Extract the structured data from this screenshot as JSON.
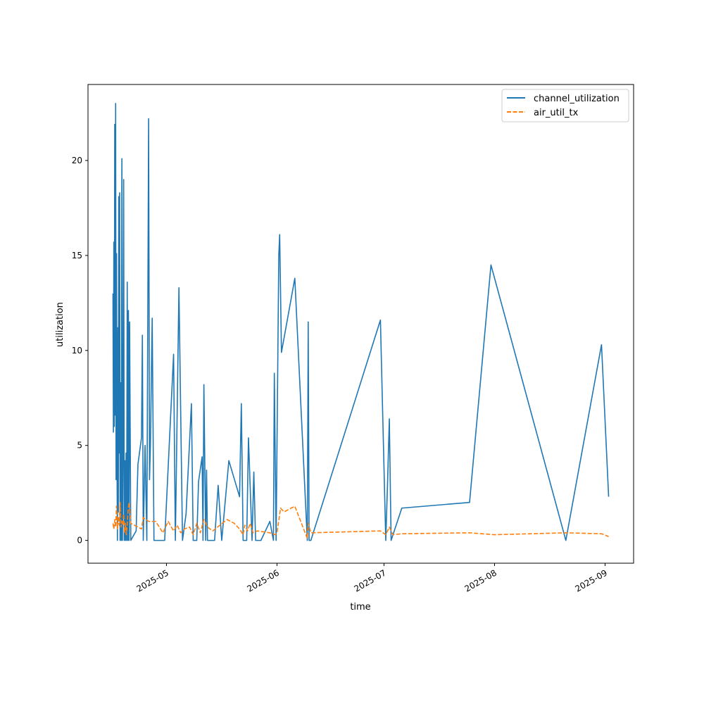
{
  "chart_data": {
    "type": "line",
    "xlabel": "time",
    "ylabel": "utilization",
    "x_axis_kind": "date",
    "xlim": [
      "2025-04-09",
      "2025-09-09"
    ],
    "ylim": [
      -1.2,
      24.0
    ],
    "grid": false,
    "legend_position": "top-right",
    "x_ticks": [
      {
        "date": "2025-05-01",
        "label": "2025-05"
      },
      {
        "date": "2025-06-01",
        "label": "2025-06"
      },
      {
        "date": "2025-07-01",
        "label": "2025-07"
      },
      {
        "date": "2025-08-01",
        "label": "2025-08"
      },
      {
        "date": "2025-09-01",
        "label": "2025-09"
      }
    ],
    "y_ticks": [
      {
        "value": 0,
        "label": "0"
      },
      {
        "value": 5,
        "label": "5"
      },
      {
        "value": 10,
        "label": "10"
      },
      {
        "value": 15,
        "label": "15"
      },
      {
        "value": 20,
        "label": "20"
      }
    ],
    "series": [
      {
        "name": "channel_utilization",
        "color": "#1f77b4",
        "dash": "solid",
        "points": [
          [
            "2025-04-16T00:00",
            13.0
          ],
          [
            "2025-04-16T03:00",
            5.7
          ],
          [
            "2025-04-16T06:00",
            15.7
          ],
          [
            "2025-04-16T09:00",
            6.0
          ],
          [
            "2025-04-16T12:00",
            21.9
          ],
          [
            "2025-04-16T15:00",
            6.6
          ],
          [
            "2025-04-16T18:00",
            23.0
          ],
          [
            "2025-04-16T21:00",
            3.2
          ],
          [
            "2025-04-17T00:00",
            15.1
          ],
          [
            "2025-04-17T03:00",
            4.4
          ],
          [
            "2025-04-17T06:00",
            0.0
          ],
          [
            "2025-04-17T09:00",
            11.2
          ],
          [
            "2025-04-17T12:00",
            1.5
          ],
          [
            "2025-04-17T15:00",
            18.1
          ],
          [
            "2025-04-17T18:00",
            4.6
          ],
          [
            "2025-04-17T21:00",
            18.3
          ],
          [
            "2025-04-18T00:00",
            0.0
          ],
          [
            "2025-04-18T04:00",
            8.3
          ],
          [
            "2025-04-18T08:00",
            0.0
          ],
          [
            "2025-04-18T12:00",
            20.1
          ],
          [
            "2025-04-18T16:00",
            0.0
          ],
          [
            "2025-04-18T20:00",
            4.4
          ],
          [
            "2025-04-19T00:00",
            19.0
          ],
          [
            "2025-04-19T04:00",
            0.0
          ],
          [
            "2025-04-19T08:00",
            4.2
          ],
          [
            "2025-04-19T12:00",
            0.0
          ],
          [
            "2025-04-19T16:00",
            4.6
          ],
          [
            "2025-04-19T20:00",
            0.0
          ],
          [
            "2025-04-20T00:00",
            13.6
          ],
          [
            "2025-04-20T04:00",
            0.0
          ],
          [
            "2025-04-20T08:00",
            12.1
          ],
          [
            "2025-04-20T12:00",
            0.0
          ],
          [
            "2025-04-20T16:00",
            11.5
          ],
          [
            "2025-04-21T00:00",
            0.0
          ],
          [
            "2025-04-22T12:00",
            0.5
          ],
          [
            "2025-04-23T00:00",
            4.0
          ],
          [
            "2025-04-24T00:00",
            5.4
          ],
          [
            "2025-04-24T06:00",
            10.8
          ],
          [
            "2025-04-24T12:00",
            0.0
          ],
          [
            "2025-04-25T00:00",
            5.0
          ],
          [
            "2025-04-25T12:00",
            0.0
          ],
          [
            "2025-04-26T00:00",
            22.2
          ],
          [
            "2025-04-26T06:00",
            3.2
          ],
          [
            "2025-04-26T12:00",
            5.0
          ],
          [
            "2025-04-27T00:00",
            11.7
          ],
          [
            "2025-04-27T12:00",
            0.0
          ],
          [
            "2025-04-30T12:00",
            0.0
          ],
          [
            "2025-05-03T00:00",
            9.8
          ],
          [
            "2025-05-03T12:00",
            0.0
          ],
          [
            "2025-05-04T12:00",
            13.3
          ],
          [
            "2025-05-05T12:00",
            0.0
          ],
          [
            "2025-05-06T12:00",
            1.4
          ],
          [
            "2025-05-08T00:00",
            7.2
          ],
          [
            "2025-05-08T12:00",
            0.0
          ],
          [
            "2025-05-09T12:00",
            0.0
          ],
          [
            "2025-05-10T00:00",
            3.1
          ],
          [
            "2025-05-11T00:00",
            4.4
          ],
          [
            "2025-05-11T06:00",
            0.0
          ],
          [
            "2025-05-11T12:00",
            8.2
          ],
          [
            "2025-05-12T00:00",
            0.0
          ],
          [
            "2025-05-12T06:00",
            3.7
          ],
          [
            "2025-05-12T12:00",
            0.0
          ],
          [
            "2025-05-14T12:00",
            0.0
          ],
          [
            "2025-05-15T12:00",
            2.9
          ],
          [
            "2025-05-16T12:00",
            0.0
          ],
          [
            "2025-05-18T12:00",
            4.2
          ],
          [
            "2025-05-21T12:00",
            2.3
          ],
          [
            "2025-05-22T00:00",
            7.2
          ],
          [
            "2025-05-22T12:00",
            0.0
          ],
          [
            "2025-05-23T12:00",
            0.0
          ],
          [
            "2025-05-24T00:00",
            5.4
          ],
          [
            "2025-05-25T00:00",
            0.0
          ],
          [
            "2025-05-25T12:00",
            3.6
          ],
          [
            "2025-05-26T00:00",
            0.0
          ],
          [
            "2025-05-27T12:00",
            0.0
          ],
          [
            "2025-05-30T00:00",
            1.0
          ],
          [
            "2025-05-31T00:00",
            0.0
          ],
          [
            "2025-05-31T06:00",
            8.8
          ],
          [
            "2025-05-31T18:00",
            0.0
          ],
          [
            "2025-06-01T12:00",
            15.0
          ],
          [
            "2025-06-01T18:00",
            16.1
          ],
          [
            "2025-06-02T06:00",
            9.9
          ],
          [
            "2025-06-06T00:00",
            13.8
          ],
          [
            "2025-06-09T12:00",
            0.0
          ],
          [
            "2025-06-09T18:00",
            11.5
          ],
          [
            "2025-06-10T00:00",
            0.0
          ],
          [
            "2025-06-10T12:00",
            0.0
          ],
          [
            "2025-06-30T00:00",
            11.6
          ],
          [
            "2025-07-01T12:00",
            0.0
          ],
          [
            "2025-07-02T00:00",
            3.0
          ],
          [
            "2025-07-02T12:00",
            6.4
          ],
          [
            "2025-07-03T00:00",
            0.0
          ],
          [
            "2025-07-06T00:00",
            1.7
          ],
          [
            "2025-07-25T00:00",
            2.0
          ],
          [
            "2025-07-31T00:00",
            14.5
          ],
          [
            "2025-08-21T00:00",
            0.0
          ],
          [
            "2025-08-31T00:00",
            10.3
          ],
          [
            "2025-09-02T00:00",
            2.3
          ]
        ]
      },
      {
        "name": "air_util_tx",
        "color": "#ff7f0e",
        "dash": "dashed",
        "points": [
          [
            "2025-04-16T00:00",
            0.9
          ],
          [
            "2025-04-16T06:00",
            0.6
          ],
          [
            "2025-04-16T12:00",
            1.1
          ],
          [
            "2025-04-16T18:00",
            0.7
          ],
          [
            "2025-04-17T00:00",
            1.8
          ],
          [
            "2025-04-17T06:00",
            0.6
          ],
          [
            "2025-04-17T12:00",
            1.2
          ],
          [
            "2025-04-17T18:00",
            0.8
          ],
          [
            "2025-04-18T00:00",
            2.0
          ],
          [
            "2025-04-18T06:00",
            0.7
          ],
          [
            "2025-04-18T12:00",
            1.0
          ],
          [
            "2025-04-18T18:00",
            0.8
          ],
          [
            "2025-04-19T00:00",
            1.4
          ],
          [
            "2025-04-19T06:00",
            0.4
          ],
          [
            "2025-04-19T12:00",
            0.9
          ],
          [
            "2025-04-19T18:00",
            0.3
          ],
          [
            "2025-04-20T00:00",
            0.8
          ],
          [
            "2025-04-20T06:00",
            1.6
          ],
          [
            "2025-04-20T12:00",
            2.0
          ],
          [
            "2025-04-20T18:00",
            1.5
          ],
          [
            "2025-04-21T00:00",
            0.9
          ],
          [
            "2025-04-22T00:00",
            0.8
          ],
          [
            "2025-04-23T00:00",
            0.7
          ],
          [
            "2025-04-24T00:00",
            0.6
          ],
          [
            "2025-04-24T12:00",
            1.2
          ],
          [
            "2025-04-26T00:00",
            1.0
          ],
          [
            "2025-04-28T00:00",
            1.0
          ],
          [
            "2025-04-30T00:00",
            0.4
          ],
          [
            "2025-05-01T12:00",
            1.0
          ],
          [
            "2025-05-03T00:00",
            0.5
          ],
          [
            "2025-05-04T00:00",
            0.8
          ],
          [
            "2025-05-05T00:00",
            0.4
          ],
          [
            "2025-05-06T00:00",
            0.6
          ],
          [
            "2025-05-07T12:00",
            0.7
          ],
          [
            "2025-05-08T12:00",
            0.3
          ],
          [
            "2025-05-09T12:00",
            0.9
          ],
          [
            "2025-05-10T12:00",
            0.4
          ],
          [
            "2025-05-11T12:00",
            1.1
          ],
          [
            "2025-05-12T12:00",
            0.7
          ],
          [
            "2025-05-14T00:00",
            0.5
          ],
          [
            "2025-05-16T00:00",
            0.8
          ],
          [
            "2025-05-18T00:00",
            1.1
          ],
          [
            "2025-05-20T00:00",
            0.9
          ],
          [
            "2025-05-21T12:00",
            0.6
          ],
          [
            "2025-05-22T12:00",
            0.3
          ],
          [
            "2025-05-23T00:00",
            0.8
          ],
          [
            "2025-05-23T18:00",
            0.5
          ],
          [
            "2025-05-24T12:00",
            0.9
          ],
          [
            "2025-05-25T06:00",
            0.4
          ],
          [
            "2025-05-26T12:00",
            0.5
          ],
          [
            "2025-05-30T00:00",
            0.4
          ],
          [
            "2025-05-31T12:00",
            0.3
          ],
          [
            "2025-06-01T00:00",
            0.4
          ],
          [
            "2025-06-02T00:00",
            1.7
          ],
          [
            "2025-06-03T00:00",
            1.5
          ],
          [
            "2025-06-06T00:00",
            1.8
          ],
          [
            "2025-06-09T12:00",
            0.1
          ],
          [
            "2025-06-09T18:00",
            0.9
          ],
          [
            "2025-06-10T12:00",
            0.4
          ],
          [
            "2025-06-30T00:00",
            0.5
          ],
          [
            "2025-07-01T12:00",
            0.3
          ],
          [
            "2025-07-02T12:00",
            0.7
          ],
          [
            "2025-07-03T12:00",
            0.3
          ],
          [
            "2025-07-06T00:00",
            0.35
          ],
          [
            "2025-07-25T00:00",
            0.4
          ],
          [
            "2025-08-01T00:00",
            0.3
          ],
          [
            "2025-08-21T00:00",
            0.4
          ],
          [
            "2025-08-31T00:00",
            0.35
          ],
          [
            "2025-09-02T00:00",
            0.2
          ]
        ]
      }
    ]
  }
}
